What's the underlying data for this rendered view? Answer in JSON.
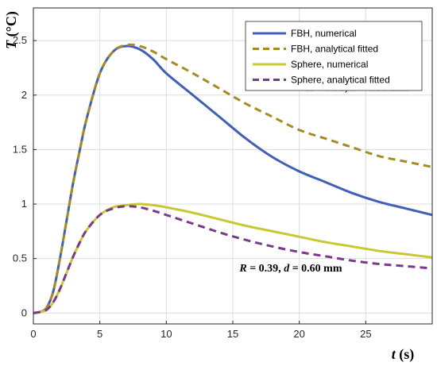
{
  "chart_data": {
    "type": "line",
    "x_label_var": "t",
    "x_label_unit": "(s)",
    "y_label_var": "T",
    "y_label_unit": "(°C)",
    "xlim": [
      0,
      30
    ],
    "ylim": [
      -0.1,
      2.8
    ],
    "xticks": [
      "0",
      "5",
      "10",
      "15",
      "20",
      "25"
    ],
    "xtick_values": [
      0,
      5,
      10,
      15,
      20,
      25
    ],
    "yticks": [
      "0",
      "0.5",
      "1",
      "1.5",
      "2",
      "2.5"
    ],
    "ytick_values": [
      0,
      0.5,
      1,
      1.5,
      2,
      2.5
    ],
    "grid": true,
    "legend_position": "top-right",
    "series": [
      {
        "name": "FBH, numerical",
        "color": "#4060B8",
        "style": "solid",
        "x": [
          0,
          0.5,
          1,
          1.5,
          2,
          2.5,
          3,
          3.5,
          4,
          5,
          6,
          7,
          8,
          9,
          10,
          12,
          14,
          16,
          18,
          20,
          22,
          24,
          26,
          28,
          30
        ],
        "y": [
          0,
          0.01,
          0.05,
          0.2,
          0.5,
          0.85,
          1.2,
          1.5,
          1.78,
          2.2,
          2.4,
          2.45,
          2.42,
          2.33,
          2.2,
          2.0,
          1.8,
          1.6,
          1.43,
          1.3,
          1.2,
          1.1,
          1.02,
          0.96,
          0.9
        ]
      },
      {
        "name": "FBH, analytical fitted",
        "color": "#A88A25",
        "style": "dashed",
        "x": [
          0,
          0.5,
          1,
          1.5,
          2,
          2.5,
          3,
          3.5,
          4,
          5,
          6,
          7,
          8,
          9,
          10,
          12,
          14,
          16,
          18,
          20,
          22,
          24,
          26,
          28,
          30
        ],
        "y": [
          0,
          0.01,
          0.05,
          0.2,
          0.5,
          0.85,
          1.2,
          1.5,
          1.78,
          2.2,
          2.4,
          2.46,
          2.45,
          2.4,
          2.33,
          2.2,
          2.06,
          1.92,
          1.8,
          1.68,
          1.6,
          1.52,
          1.44,
          1.39,
          1.34
        ]
      },
      {
        "name": "Sphere, numerical",
        "color": "#C8C832",
        "style": "solid",
        "x": [
          0,
          0.5,
          1,
          1.5,
          2,
          2.5,
          3,
          3.5,
          4,
          5,
          6,
          7,
          8,
          9,
          10,
          12,
          14,
          16,
          18,
          20,
          22,
          24,
          26,
          28,
          30
        ],
        "y": [
          0,
          0.01,
          0.03,
          0.1,
          0.22,
          0.37,
          0.52,
          0.65,
          0.76,
          0.9,
          0.97,
          0.99,
          1.0,
          0.99,
          0.97,
          0.92,
          0.86,
          0.8,
          0.75,
          0.7,
          0.65,
          0.61,
          0.57,
          0.54,
          0.51
        ]
      },
      {
        "name": "Sphere, analytical fitted",
        "color": "#7A3A8C",
        "style": "dashed",
        "x": [
          0,
          0.5,
          1,
          1.5,
          2,
          2.5,
          3,
          3.5,
          4,
          5,
          6,
          7,
          8,
          9,
          10,
          12,
          14,
          16,
          18,
          20,
          22,
          24,
          26,
          28,
          30
        ],
        "y": [
          0,
          0.01,
          0.03,
          0.1,
          0.22,
          0.37,
          0.52,
          0.65,
          0.76,
          0.9,
          0.96,
          0.98,
          0.97,
          0.94,
          0.9,
          0.82,
          0.74,
          0.67,
          0.61,
          0.56,
          0.52,
          0.48,
          0.45,
          0.43,
          0.41
        ]
      }
    ],
    "annotations": [
      {
        "r_var": "R",
        "r_val": " = 0.91, ",
        "d_var": "d",
        "d_val": " = 0.59 mm",
        "x": 20.5,
        "y": 2.04
      },
      {
        "r_var": "R",
        "r_val": " = 0.39, ",
        "d_var": "d",
        "d_val": " = 0.60 mm",
        "x": 15.5,
        "y": 0.38
      }
    ]
  }
}
